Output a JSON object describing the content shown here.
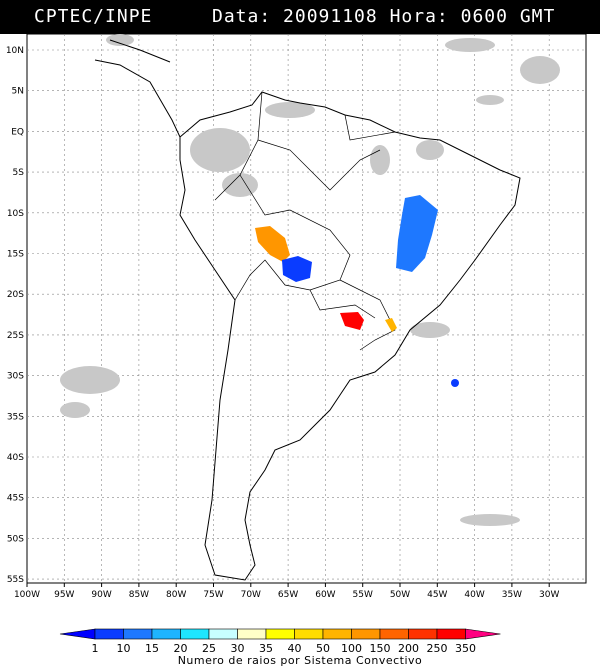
{
  "header": {
    "org": "CPTEC/INPE",
    "data_label": "Data:",
    "date": "20091108",
    "hora_label": "Hora:",
    "time": "0600",
    "tz": "GMT"
  },
  "axes": {
    "lat_labels": [
      "10N",
      "5N",
      "EQ",
      "5S",
      "10S",
      "15S",
      "20S",
      "25S",
      "30S",
      "35S",
      "40S",
      "45S",
      "50S",
      "55S"
    ],
    "lon_labels": [
      "100W",
      "95W",
      "90W",
      "85W",
      "80W",
      "75W",
      "70W",
      "65W",
      "60W",
      "55W",
      "50W",
      "45W",
      "40W",
      "35W",
      "30W"
    ]
  },
  "legend": {
    "title": "Numero de raios por Sistema Convectivo",
    "ticks": [
      "1",
      "10",
      "15",
      "20",
      "25",
      "30",
      "35",
      "40",
      "50",
      "100",
      "150",
      "200",
      "250",
      "350"
    ],
    "colors": [
      "#0000ff",
      "#0a3cff",
      "#1e78ff",
      "#1eb4ff",
      "#1ee6ff",
      "#c8ffff",
      "#ffffc8",
      "#ffff00",
      "#ffdc00",
      "#ffb400",
      "#ff9600",
      "#ff6400",
      "#ff3200",
      "#ff0000",
      "#ff0080"
    ]
  },
  "map": {
    "systems": [
      {
        "color": "#ff9600",
        "label": ""
      },
      {
        "color": "#0a3cff",
        "label": ""
      },
      {
        "color": "#1e78ff",
        "label": ""
      },
      {
        "color": "#ff0000",
        "label": ""
      },
      {
        "color": "#ffb400",
        "label": ""
      }
    ]
  }
}
